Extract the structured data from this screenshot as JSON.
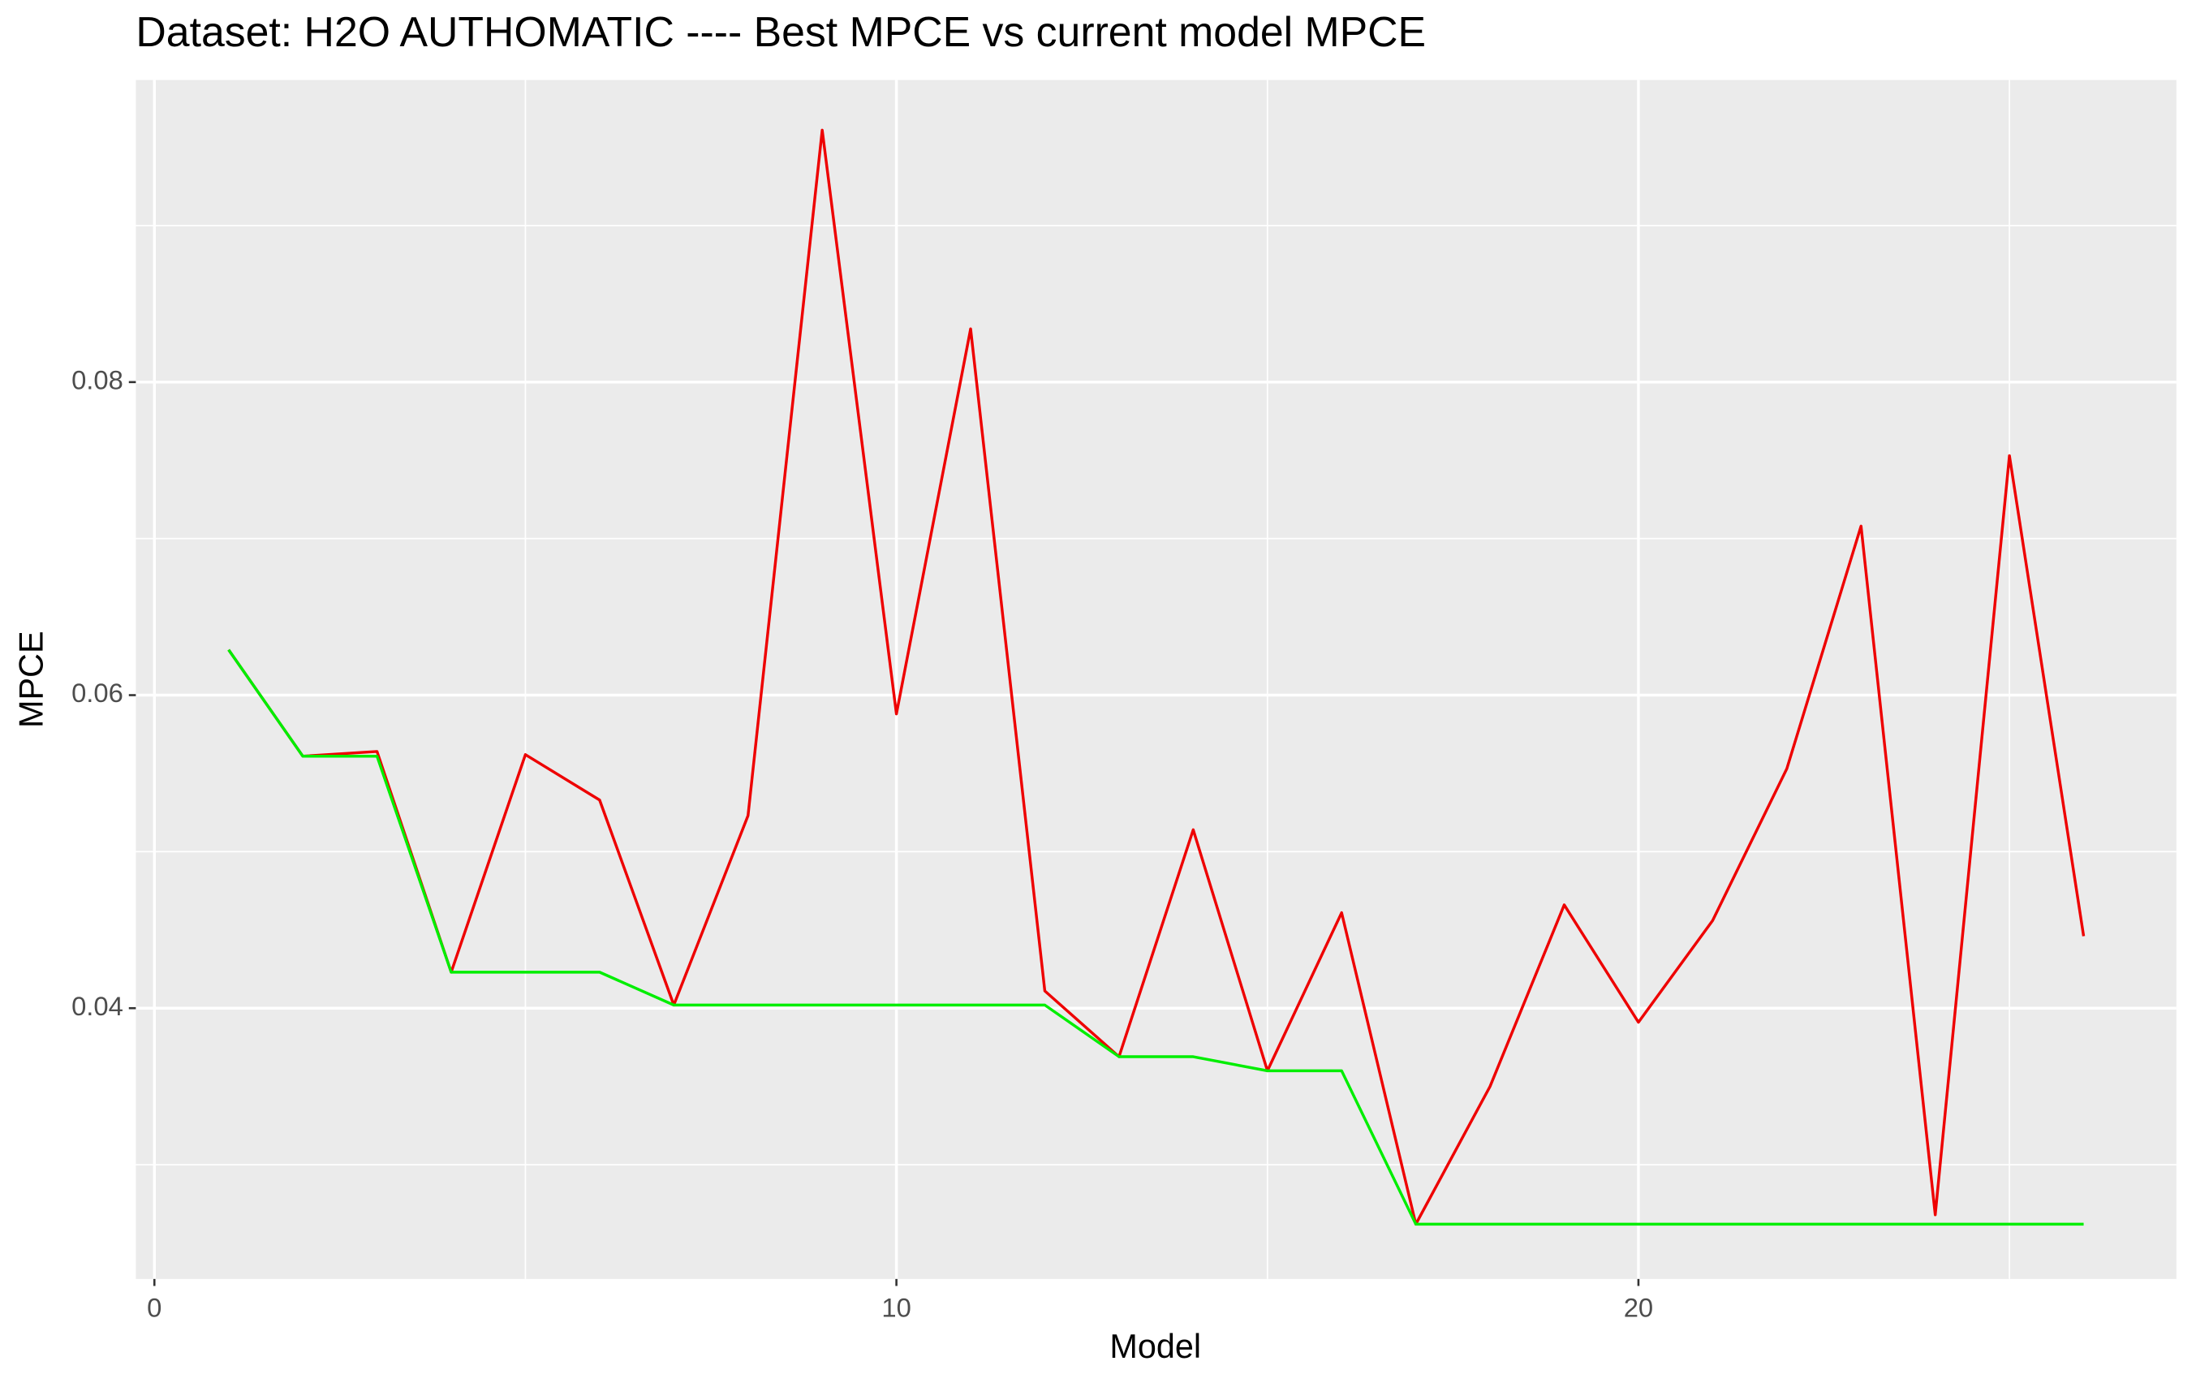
{
  "chart_data": {
    "type": "line",
    "title": "Dataset:  H2O AUTHOMATIC  ---- Best MPCE vs current model MPCE",
    "x_label": "Model",
    "y_label": "MPCE",
    "x": [
      1,
      2,
      3,
      4,
      5,
      6,
      7,
      8,
      9,
      10,
      11,
      12,
      13,
      14,
      15,
      16,
      17,
      18,
      19,
      20,
      21,
      22,
      23,
      24,
      25,
      26
    ],
    "series": [
      {
        "color": "#ee0000",
        "values": [
          0.0629,
          0.0561,
          0.0564,
          0.0423,
          0.0562,
          0.0533,
          0.0402,
          0.0523,
          0.0961,
          0.0588,
          0.0834,
          0.0411,
          0.0369,
          0.0514,
          0.036,
          0.0461,
          0.0262,
          0.035,
          0.0466,
          0.0391,
          0.0456,
          0.0553,
          0.0708,
          0.0268,
          0.0753,
          0.0446
        ]
      },
      {
        "color": "#00ee00",
        "values": [
          0.0629,
          0.0561,
          0.0561,
          0.0423,
          0.0423,
          0.0423,
          0.0402,
          0.0402,
          0.0402,
          0.0402,
          0.0402,
          0.0402,
          0.0369,
          0.0369,
          0.036,
          0.036,
          0.0262,
          0.0262,
          0.0262,
          0.0262,
          0.0262,
          0.0262,
          0.0262,
          0.0262,
          0.0262,
          0.0262
        ]
      }
    ],
    "xlim": [
      -0.25,
      27.25
    ],
    "ylim": [
      0.0227,
      0.0993
    ],
    "xticks": [
      0,
      10,
      20
    ],
    "yticks": [
      0.04,
      0.06,
      0.08
    ],
    "x_minor_ticks": [
      5,
      15,
      25
    ],
    "y_minor_ticks": [
      0.03,
      0.05,
      0.07,
      0.09
    ],
    "grid": true
  }
}
